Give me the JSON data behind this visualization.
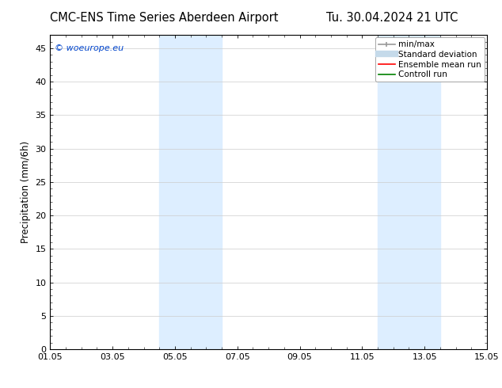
{
  "title_left": "CMC-ENS Time Series Aberdeen Airport",
  "title_right": "Tu. 30.04.2024 21 UTC",
  "ylabel": "Precipitation (mm/6h)",
  "xtick_labels": [
    "01.05",
    "03.05",
    "05.05",
    "07.05",
    "09.05",
    "11.05",
    "13.05",
    "15.05"
  ],
  "xtick_positions": [
    0,
    2,
    4,
    6,
    8,
    10,
    12,
    14
  ],
  "ylim": [
    0,
    47
  ],
  "ytick_positions": [
    0,
    5,
    10,
    15,
    20,
    25,
    30,
    35,
    40,
    45
  ],
  "ytick_labels": [
    "0",
    "5",
    "10",
    "15",
    "20",
    "25",
    "30",
    "35",
    "40",
    "45"
  ],
  "shade_bands": [
    {
      "x_start": 3.5,
      "x_end": 5.5,
      "color": "#ddeeff"
    },
    {
      "x_start": 10.5,
      "x_end": 12.5,
      "color": "#ddeeff"
    }
  ],
  "watermark_text": "© woeurope.eu",
  "watermark_color": "#0044cc",
  "background_color": "#ffffff",
  "plot_bg_color": "#ffffff",
  "grid_color": "#cccccc",
  "title_fontsize": 10.5,
  "axis_fontsize": 8.5,
  "tick_fontsize": 8,
  "legend_fontsize": 7.5
}
